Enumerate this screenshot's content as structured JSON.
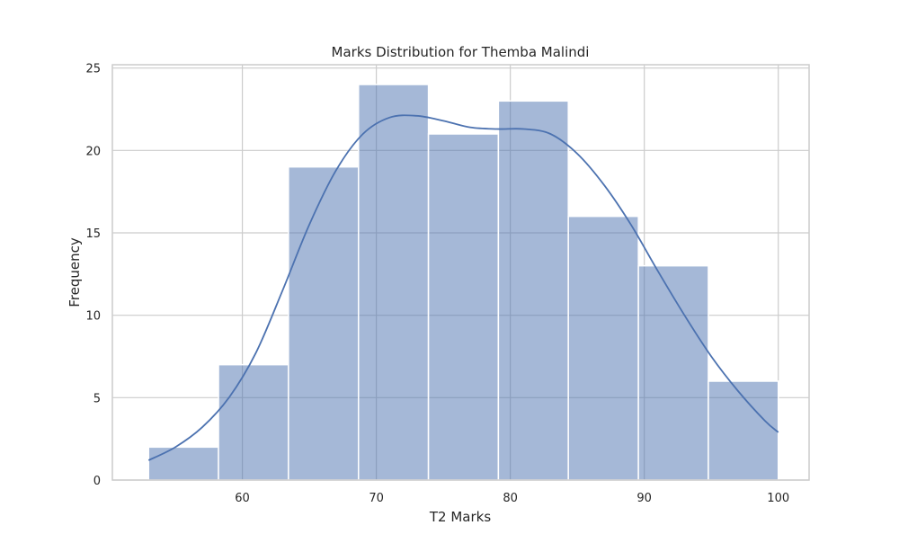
{
  "chart_data": {
    "type": "bar",
    "subtype": "histogram-with-kde",
    "title": "Marks Distribution for Themba Malindi",
    "xlabel": "T2 Marks",
    "ylabel": "Frequency",
    "xlim": [
      50.3,
      102.3
    ],
    "ylim": [
      0,
      25.2
    ],
    "xticks": [
      60,
      70,
      80,
      90,
      100
    ],
    "yticks": [
      0,
      5,
      10,
      15,
      20,
      25
    ],
    "grid": true,
    "bin_edges": [
      53,
      58.22,
      63.44,
      68.67,
      73.89,
      79.11,
      84.33,
      89.56,
      94.78,
      100
    ],
    "counts": [
      2,
      7,
      19,
      24,
      21,
      23,
      16,
      13,
      6
    ],
    "kde": {
      "x": [
        53,
        55,
        57,
        59,
        61,
        63,
        65,
        67,
        69,
        71,
        73,
        75,
        77,
        79,
        81,
        83,
        85,
        87,
        89,
        91,
        93,
        95,
        97,
        99,
        100
      ],
      "y": [
        1.2,
        2.0,
        3.2,
        5.0,
        7.7,
        11.5,
        15.5,
        18.8,
        21.0,
        22.0,
        22.1,
        21.8,
        21.4,
        21.3,
        21.3,
        21.0,
        19.8,
        17.9,
        15.5,
        12.7,
        10.0,
        7.5,
        5.4,
        3.6,
        2.9
      ]
    },
    "colors": {
      "bar": "#4c72b0",
      "line": "#4c72b0"
    }
  }
}
